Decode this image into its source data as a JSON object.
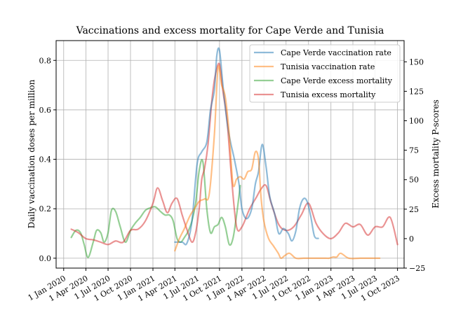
{
  "chart_data": {
    "type": "line",
    "title": "Vaccinations and excess mortality for Cape Verde and Tunisia",
    "xlabel": "",
    "ylabel": "Daily vaccination doses per million",
    "y2label": "Excess mortality P-scores",
    "xlim": [
      "2019-12-01",
      "2023-10-28"
    ],
    "ylim": [
      -0.04,
      0.88
    ],
    "y2lim": [
      -25,
      168
    ],
    "x_ticks": [
      "2020-01-01",
      "2020-04-01",
      "2020-07-01",
      "2020-10-01",
      "2021-01-01",
      "2021-04-01",
      "2021-07-01",
      "2021-10-01",
      "2022-01-01",
      "2022-04-01",
      "2022-07-01",
      "2022-10-01",
      "2023-01-01",
      "2023-04-01",
      "2023-07-01",
      "2023-10-01"
    ],
    "x_tick_labels": [
      "1 Jan 2020",
      "1 Apr 2020",
      "1 Jul 2020",
      "1 Oct 2020",
      "1 Jan 2021",
      "1 Apr 2021",
      "1 Jul 2021",
      "1 Oct 2021",
      "1 Jan 2022",
      "1 Apr 2022",
      "1 Jul 2022",
      "1 Oct 2022",
      "1 Jan 2023",
      "1 Apr 2023",
      "1 Jul 2023",
      "1 Oct 2023"
    ],
    "y_ticks": [
      0.0,
      0.2,
      0.4,
      0.6,
      0.8
    ],
    "y_tick_labels": [
      "0.0",
      "0.2",
      "0.4",
      "0.6",
      "0.8"
    ],
    "y2_ticks": [
      -25,
      0,
      25,
      50,
      75,
      100,
      125,
      150
    ],
    "y2_tick_labels": [
      "−25",
      "0",
      "25",
      "50",
      "75",
      "100",
      "125",
      "150"
    ],
    "grid": true,
    "legend_position": "top-right",
    "series": [
      {
        "name": "Cape Verde vaccination rate",
        "axis": "left",
        "color": "#1f77b4",
        "x": [
          "2021-04-01",
          "2021-05-01",
          "2021-05-20",
          "2021-06-10",
          "2021-07-01",
          "2021-07-20",
          "2021-08-10",
          "2021-08-25",
          "2021-09-10",
          "2021-09-20",
          "2021-10-01",
          "2021-10-15",
          "2021-11-01",
          "2021-11-15",
          "2021-12-01",
          "2021-12-20",
          "2022-01-01",
          "2022-01-20",
          "2022-02-10",
          "2022-02-25",
          "2022-03-10",
          "2022-03-25",
          "2022-04-10",
          "2022-04-25",
          "2022-05-15",
          "2022-06-01",
          "2022-06-20",
          "2022-07-10",
          "2022-07-25",
          "2022-08-10",
          "2022-08-25",
          "2022-09-10",
          "2022-09-25",
          "2022-10-10",
          "2022-10-25",
          "2022-11-10"
        ],
        "y": [
          0.065,
          0.065,
          0.06,
          0.15,
          0.38,
          0.43,
          0.47,
          0.6,
          0.68,
          0.82,
          0.84,
          0.7,
          0.55,
          0.47,
          0.4,
          0.3,
          0.2,
          0.16,
          0.2,
          0.3,
          0.35,
          0.46,
          0.37,
          0.25,
          0.18,
          0.1,
          0.12,
          0.1,
          0.07,
          0.11,
          0.2,
          0.24,
          0.23,
          0.17,
          0.09,
          0.08
        ]
      },
      {
        "name": "Tunisia vaccination rate",
        "axis": "left",
        "color": "#ff7f0e",
        "x": [
          "2021-04-01",
          "2021-04-20",
          "2021-05-10",
          "2021-06-01",
          "2021-06-20",
          "2021-07-10",
          "2021-08-01",
          "2021-08-20",
          "2021-09-10",
          "2021-09-25",
          "2021-10-10",
          "2021-10-25",
          "2021-11-10",
          "2021-11-25",
          "2021-12-10",
          "2021-12-25",
          "2022-01-10",
          "2022-01-25",
          "2022-02-10",
          "2022-02-25",
          "2022-03-10",
          "2022-03-20",
          "2022-04-01",
          "2022-04-20",
          "2022-05-10",
          "2022-05-30",
          "2022-06-10",
          "2022-06-25",
          "2022-07-15",
          "2022-08-10",
          "2022-09-10",
          "2022-10-10",
          "2022-11-10",
          "2022-12-10",
          "2022-12-25",
          "2023-01-10",
          "2023-01-25",
          "2023-02-10",
          "2023-03-15",
          "2023-05-01",
          "2023-06-15",
          "2023-07-20"
        ],
        "y": [
          0.03,
          0.08,
          0.12,
          0.17,
          0.2,
          0.23,
          0.24,
          0.26,
          0.5,
          0.77,
          0.7,
          0.65,
          0.5,
          0.3,
          0.32,
          0.33,
          0.32,
          0.35,
          0.36,
          0.43,
          0.4,
          0.25,
          0.15,
          0.08,
          0.05,
          0.02,
          0.0,
          0.01,
          0.02,
          0.0,
          0.0,
          0.0,
          0.0,
          0.0,
          0.0,
          0.005,
          0.005,
          0.02,
          0.0,
          0.0,
          0.0,
          0.0
        ]
      },
      {
        "name": "Cape Verde excess mortality",
        "axis": "right",
        "color": "#2ca02c",
        "x": [
          "2020-02-01",
          "2020-02-20",
          "2020-03-10",
          "2020-03-25",
          "2020-04-10",
          "2020-05-01",
          "2020-05-15",
          "2020-06-01",
          "2020-06-15",
          "2020-07-01",
          "2020-07-15",
          "2020-08-01",
          "2020-08-20",
          "2020-09-10",
          "2020-10-01",
          "2020-10-20",
          "2020-11-10",
          "2020-12-01",
          "2020-12-20",
          "2021-01-10",
          "2021-02-01",
          "2021-02-20",
          "2021-03-10",
          "2021-03-25",
          "2021-04-10",
          "2021-04-25",
          "2021-05-10",
          "2021-05-25",
          "2021-06-10",
          "2021-06-25",
          "2021-07-10",
          "2021-07-25",
          "2021-08-10",
          "2021-08-25",
          "2021-09-10",
          "2021-09-25",
          "2021-10-10",
          "2021-10-25",
          "2021-11-10",
          "2021-11-25",
          "2021-12-10",
          "2021-12-25"
        ],
        "y": [
          1,
          7,
          5,
          -5,
          -16,
          -3,
          7,
          5,
          -3,
          5,
          24,
          23,
          10,
          -3,
          7,
          13,
          18,
          24,
          26,
          27,
          23,
          20,
          20,
          15,
          0,
          -3,
          1,
          6,
          15,
          30,
          58,
          65,
          25,
          5,
          10,
          12,
          18,
          10,
          -5,
          0,
          20,
          45
        ]
      },
      {
        "name": "Tunisia excess mortality",
        "axis": "right",
        "color": "#d62728",
        "x": [
          "2020-02-01",
          "2020-03-01",
          "2020-04-01",
          "2020-05-01",
          "2020-06-01",
          "2020-07-01",
          "2020-08-01",
          "2020-09-01",
          "2020-10-01",
          "2020-11-01",
          "2020-12-01",
          "2021-01-01",
          "2021-01-20",
          "2021-02-10",
          "2021-03-01",
          "2021-03-20",
          "2021-04-10",
          "2021-05-01",
          "2021-05-20",
          "2021-06-10",
          "2021-06-25",
          "2021-07-10",
          "2021-07-20",
          "2021-08-01",
          "2021-08-15",
          "2021-09-01",
          "2021-09-15",
          "2021-10-01",
          "2021-10-15",
          "2021-11-01",
          "2021-11-20",
          "2021-12-10",
          "2022-01-01",
          "2022-02-01",
          "2022-03-01",
          "2022-03-20",
          "2022-04-10",
          "2022-05-01",
          "2022-06-01",
          "2022-07-01",
          "2022-08-01",
          "2022-09-01",
          "2022-10-01",
          "2022-11-01",
          "2022-12-01",
          "2023-01-01",
          "2023-02-01",
          "2023-03-01",
          "2023-04-01",
          "2023-05-01",
          "2023-06-01",
          "2023-07-01",
          "2023-08-01",
          "2023-09-01",
          "2023-10-01"
        ],
        "y": [
          8,
          5,
          0,
          -1,
          -3,
          -5,
          -2,
          -3,
          7,
          8,
          15,
          30,
          43,
          32,
          22,
          30,
          34,
          20,
          8,
          -3,
          5,
          26,
          50,
          60,
          80,
          120,
          140,
          148,
          125,
          100,
          50,
          10,
          10,
          25,
          35,
          42,
          45,
          30,
          12,
          7,
          10,
          20,
          30,
          13,
          4,
          0,
          5,
          13,
          10,
          12,
          3,
          10,
          10,
          18,
          -5
        ]
      }
    ]
  }
}
